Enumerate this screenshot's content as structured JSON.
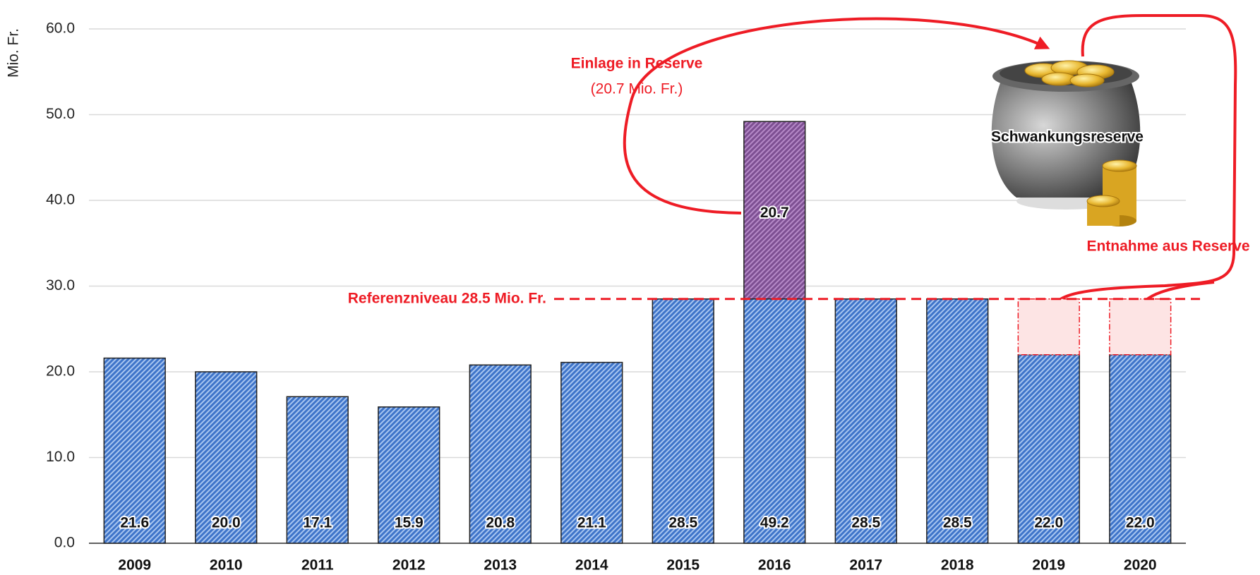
{
  "chart_data": {
    "type": "bar",
    "y_label": "Mio. Fr.",
    "categories": [
      "2009",
      "2010",
      "2011",
      "2012",
      "2013",
      "2014",
      "2015",
      "2016",
      "2017",
      "2018",
      "2019",
      "2020"
    ],
    "series": [
      {
        "color": "#4a7fd0",
        "values": [
          21.6,
          20.0,
          17.1,
          15.9,
          20.8,
          21.1,
          28.5,
          28.5,
          28.5,
          28.5,
          22.0,
          22.0
        ]
      },
      {
        "color": "#8a5a9c",
        "values": [
          null,
          null,
          null,
          null,
          null,
          null,
          null,
          20.7,
          null,
          null,
          null,
          null
        ]
      },
      {
        "color": "#fde4e4",
        "values": [
          null,
          null,
          null,
          null,
          null,
          null,
          null,
          null,
          null,
          null,
          6.5,
          6.5
        ]
      }
    ],
    "totals": [
      21.6,
      20.0,
      17.1,
      15.9,
      20.8,
      21.1,
      28.5,
      49.2,
      28.5,
      28.5,
      22.0,
      22.0
    ],
    "total_labels": [
      "21.6",
      "20.0",
      "17.1",
      "15.9",
      "20.8",
      "21.1",
      "28.5",
      "49.2",
      "28.5",
      "28.5",
      "22.0",
      "22.0"
    ],
    "deposit_label": "20.7",
    "reference": {
      "value": 28.5,
      "label": "Referenzniveau 28.5 Mio. Fr.",
      "color": "#ee1c25"
    },
    "ylim": [
      0,
      60
    ],
    "yticks": [
      {
        "value": 0,
        "label": "0.0"
      },
      {
        "value": 10,
        "label": "10.0"
      },
      {
        "value": 20,
        "label": "20.0"
      },
      {
        "value": 30,
        "label": "30.0"
      },
      {
        "value": 40,
        "label": "40.0"
      },
      {
        "value": 50,
        "label": "50.0"
      },
      {
        "value": 60,
        "label": "60.0"
      }
    ],
    "grid": true,
    "annotations": {
      "deposit_title": "Einlage in Reserve",
      "deposit_amount": "(20.7 Mio. Fr.)",
      "reserve": "Schwankungsreserve",
      "withdrawal": "Entnahme aus Reserve"
    }
  }
}
